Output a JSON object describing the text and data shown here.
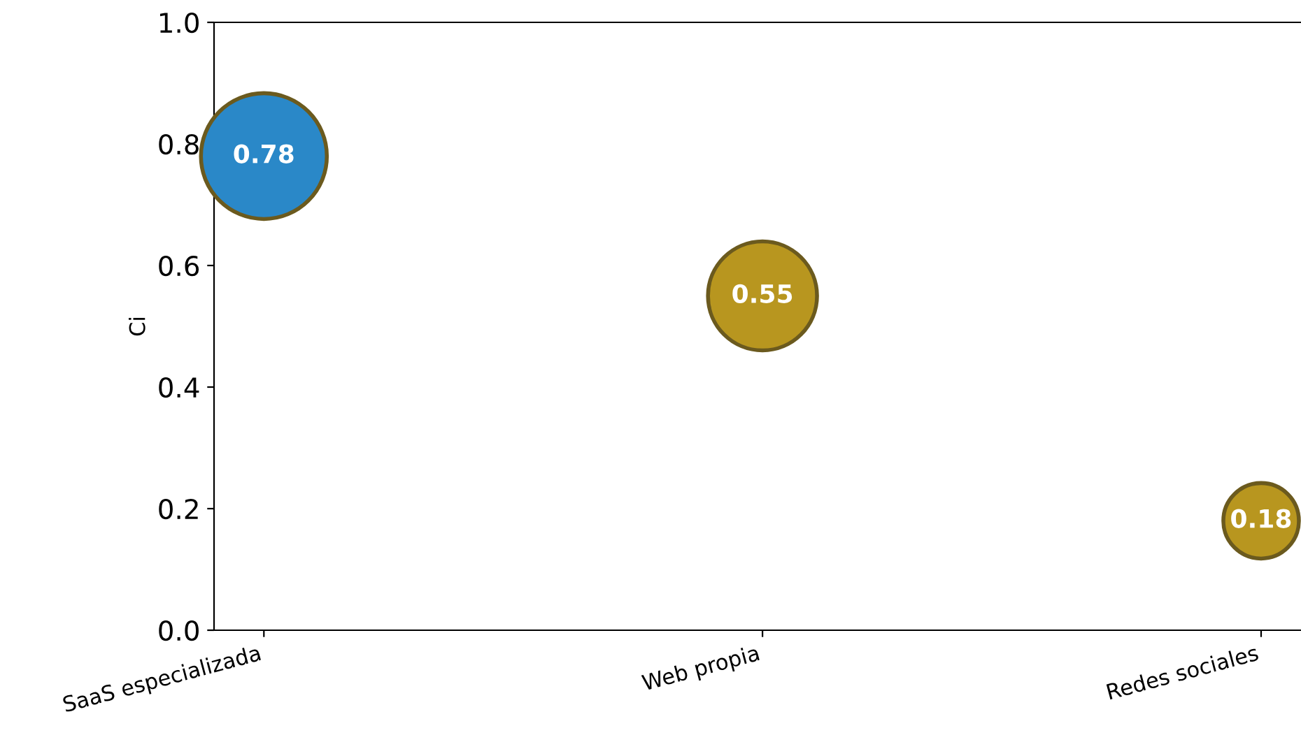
{
  "chart_data": {
    "type": "bubble",
    "ylabel": "Ci",
    "categories": [
      "SaaS especializada",
      "Web propia",
      "Redes sociales"
    ],
    "values": [
      0.78,
      0.55,
      0.18
    ],
    "sizes": [
      1,
      0.75,
      0.36
    ],
    "colors": [
      "#2a88c8",
      "#b8961f",
      "#b8961f"
    ],
    "ylim": [
      0,
      1.0
    ],
    "yticks": [
      {
        "value": 0,
        "label": "0.0"
      },
      0.2,
      0.4,
      0.6,
      0.8,
      {
        "value": 1,
        "label": "1.0"
      }
    ],
    "grid": false,
    "data_labels": true
  }
}
